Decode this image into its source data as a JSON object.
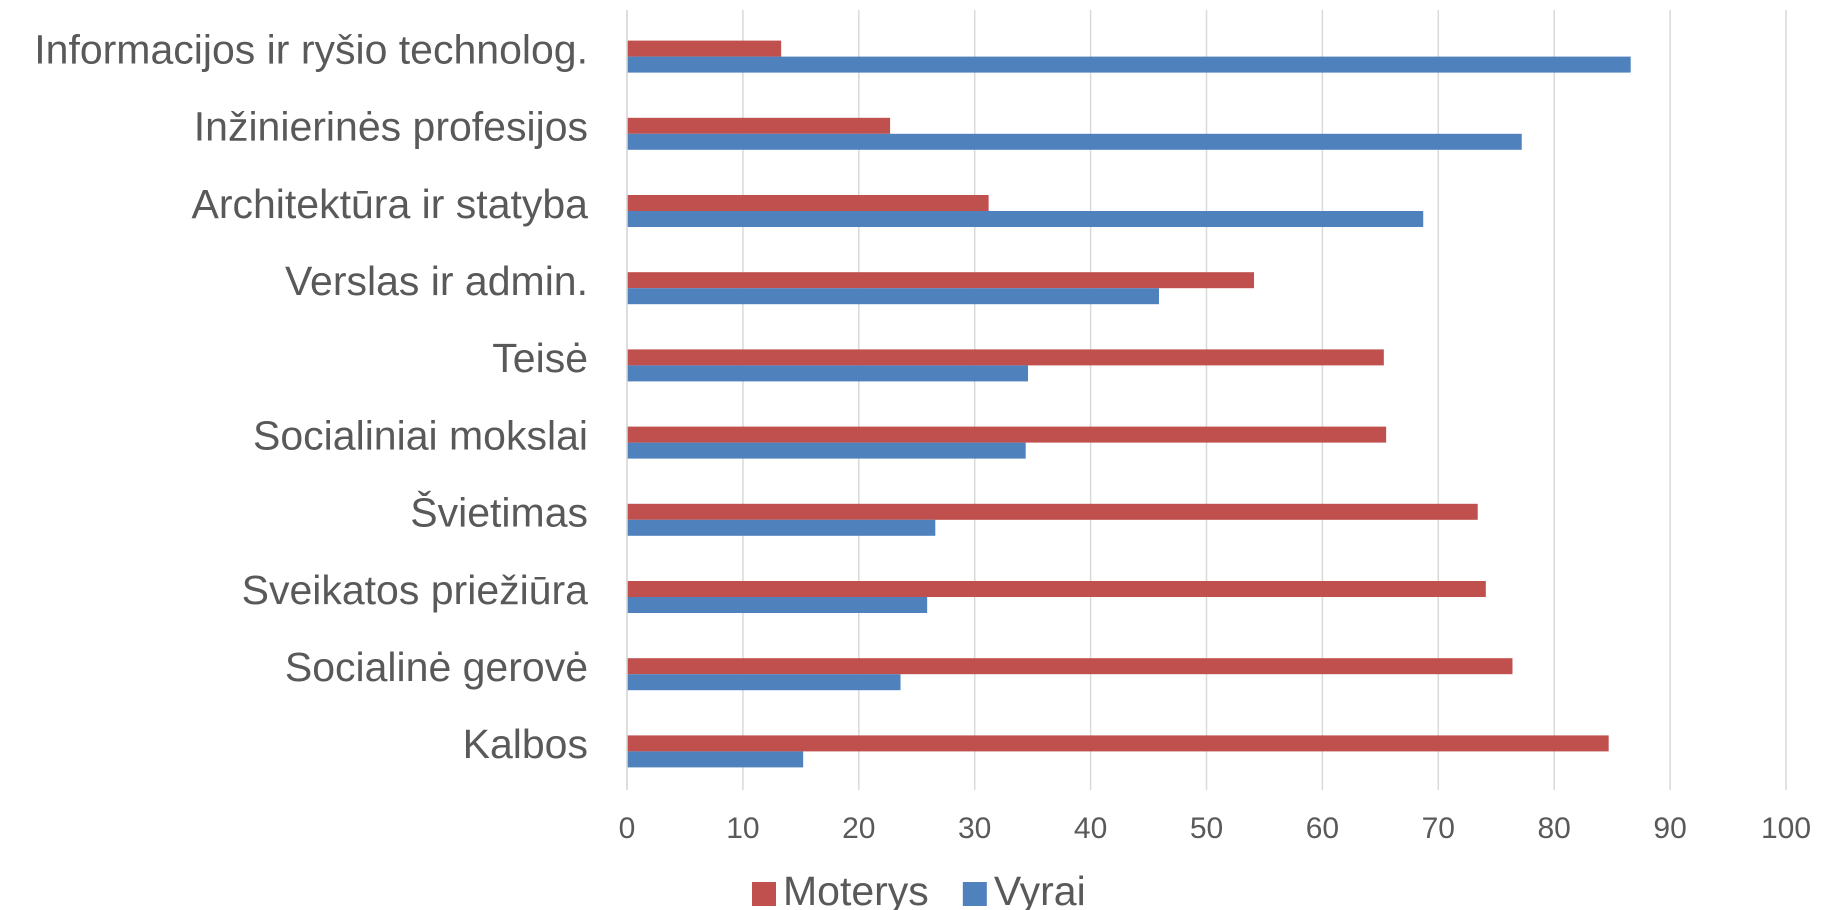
{
  "chart_data": {
    "type": "bar",
    "orientation": "horizontal",
    "categories": [
      "Informacijos ir ryšio technolog.",
      "Inžinierinės profesijos",
      "Architektūra ir statyba",
      "Verslas ir admin.",
      "Teisė",
      "Socialiniai mokslai",
      "Švietimas",
      "Sveikatos priežiūra",
      "Socialinė gerovė",
      "Kalbos"
    ],
    "series": [
      {
        "name": "Moterys",
        "color": "#c0504d",
        "values": [
          13.3,
          22.7,
          31.2,
          54.1,
          65.3,
          65.5,
          73.4,
          74.1,
          76.4,
          84.7
        ]
      },
      {
        "name": "Vyrai",
        "color": "#4f81bd",
        "values": [
          86.6,
          77.2,
          68.7,
          45.9,
          34.6,
          34.4,
          26.6,
          25.9,
          23.6,
          15.2
        ]
      }
    ],
    "xlim": [
      0,
      100
    ],
    "xticks": [
      0,
      10,
      20,
      30,
      40,
      50,
      60,
      70,
      80,
      90,
      100
    ],
    "grid": true,
    "legend": "bottom"
  }
}
